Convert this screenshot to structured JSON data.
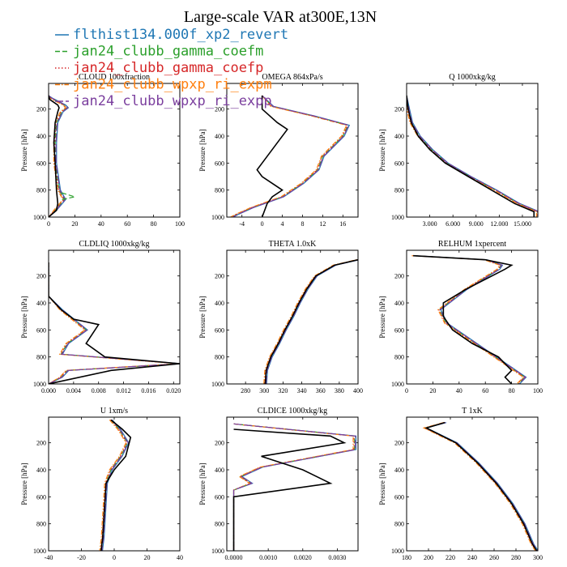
{
  "chart_data": {
    "type": "line",
    "title": "Large-scale VAR at300E,13N",
    "ylabel": "Pressure [hPa]",
    "ylim": [
      1000,
      10
    ],
    "yticks": [
      200,
      400,
      600,
      800,
      1000
    ],
    "legend_position": "top-left",
    "series": [
      {
        "name": "flthist134.000f_xp2_revert",
        "color": "#1f77b4",
        "dash": "solid"
      },
      {
        "name": "jan24_clubb_gamma_coefm",
        "color": "#2ca02c",
        "dash": "dashed"
      },
      {
        "name": "jan24_clubb_gamma_coefp",
        "color": "#d62728",
        "dash": "dotted"
      },
      {
        "name": "jan24_clubb_wpxp_ri_expm",
        "color": "#ff7f0e",
        "dash": "dashdot"
      },
      {
        "name": "jan24_clubb_wpxp_ri_expp",
        "color": "#7b3f9e",
        "dash": "longdash"
      }
    ],
    "panels": [
      {
        "id": "cloud",
        "title": "CLOUD  100xfraction",
        "xlim": [
          0,
          100
        ],
        "xticks": [
          0,
          20,
          40,
          60,
          80,
          100
        ],
        "xtick_labels": [
          "0",
          "20",
          "40",
          "60",
          "80",
          "100"
        ],
        "obs": [
          [
            0,
            100
          ],
          [
            1,
            130
          ],
          [
            4,
            150
          ],
          [
            7,
            170
          ],
          [
            8,
            190
          ],
          [
            7,
            220
          ],
          [
            5,
            300
          ],
          [
            4,
            450
          ],
          [
            5,
            600
          ],
          [
            6,
            800
          ],
          [
            7,
            900
          ],
          [
            6,
            950
          ],
          [
            0,
            1000
          ]
        ],
        "model": [
          [
            0,
            100
          ],
          [
            2,
            120
          ],
          [
            8,
            150
          ],
          [
            12,
            170
          ],
          [
            14,
            190
          ],
          [
            10,
            220
          ],
          [
            6,
            300
          ],
          [
            5,
            450
          ],
          [
            5,
            600
          ],
          [
            8,
            800
          ],
          [
            12,
            870
          ],
          [
            5,
            950
          ],
          [
            0,
            1000
          ]
        ],
        "green_extra": [
          [
            10,
            820
          ],
          [
            20,
            850
          ],
          [
            10,
            870
          ]
        ]
      },
      {
        "id": "omega",
        "title": "OMEGA  864xPa/s",
        "xlim": [
          -7,
          19
        ],
        "xticks": [
          -4,
          0,
          4,
          8,
          12,
          16
        ],
        "xtick_labels": [
          "-4",
          "0",
          "4",
          "8",
          "12",
          "16"
        ],
        "obs": [
          [
            0,
            100
          ],
          [
            0,
            200
          ],
          [
            3,
            300
          ],
          [
            5,
            350
          ],
          [
            3,
            450
          ],
          [
            0,
            600
          ],
          [
            -1,
            650
          ],
          [
            0,
            700
          ],
          [
            4,
            800
          ],
          [
            2,
            850
          ],
          [
            1,
            900
          ],
          [
            0,
            1000
          ]
        ],
        "model": [
          [
            0,
            100
          ],
          [
            2,
            180
          ],
          [
            10,
            250
          ],
          [
            17,
            320
          ],
          [
            16,
            400
          ],
          [
            12,
            550
          ],
          [
            11,
            650
          ],
          [
            8,
            750
          ],
          [
            4,
            850
          ],
          [
            -2,
            930
          ],
          [
            -5,
            980
          ],
          [
            -6,
            1000
          ]
        ]
      },
      {
        "id": "q",
        "title": "Q  1000xkg/kg",
        "xlim": [
          0,
          17
        ],
        "xticks": [
          3,
          6,
          9,
          12,
          15
        ],
        "xtick_labels": [
          "3.000",
          "6.000",
          "9.000",
          "12.000",
          "15.000"
        ],
        "obs": [
          [
            0,
            100
          ],
          [
            0.2,
            200
          ],
          [
            0.6,
            300
          ],
          [
            1.5,
            400
          ],
          [
            3,
            500
          ],
          [
            5,
            600
          ],
          [
            8,
            700
          ],
          [
            11,
            800
          ],
          [
            14,
            900
          ],
          [
            16.5,
            960
          ],
          [
            16.5,
            1000
          ]
        ],
        "model": [
          [
            0,
            100
          ],
          [
            0.2,
            200
          ],
          [
            0.6,
            300
          ],
          [
            1.6,
            400
          ],
          [
            3.2,
            500
          ],
          [
            5.2,
            600
          ],
          [
            8.2,
            700
          ],
          [
            11.5,
            800
          ],
          [
            14.5,
            900
          ],
          [
            17,
            960
          ],
          [
            17,
            1000
          ]
        ]
      },
      {
        "id": "cldliq",
        "title": "CLDLIQ  1000xkg/kg",
        "xlim": [
          0,
          0.021
        ],
        "xticks": [
          0,
          0.004,
          0.008,
          0.012,
          0.016,
          0.02
        ],
        "xtick_labels": [
          "0.000",
          "0.004",
          "0.008",
          "0.012",
          "0.016",
          "0.020"
        ],
        "obs": [
          [
            0,
            100
          ],
          [
            0,
            350
          ],
          [
            0.002,
            450
          ],
          [
            0.004,
            520
          ],
          [
            0.008,
            560
          ],
          [
            0.006,
            700
          ],
          [
            0.009,
            800
          ],
          [
            0.021,
            850
          ],
          [
            0.01,
            900
          ],
          [
            0,
            1000
          ]
        ],
        "model": [
          [
            0,
            100
          ],
          [
            0,
            350
          ],
          [
            0.002,
            450
          ],
          [
            0.006,
            600
          ],
          [
            0.003,
            700
          ],
          [
            0.002,
            780
          ],
          [
            0.021,
            850
          ],
          [
            0.003,
            900
          ],
          [
            0.002,
            950
          ],
          [
            0,
            1000
          ]
        ]
      },
      {
        "id": "theta",
        "title": "THETA  1.0xK",
        "xlim": [
          260,
          400
        ],
        "xticks": [
          280,
          300,
          320,
          340,
          360,
          380,
          400
        ],
        "xtick_labels": [
          "280",
          "300",
          "320",
          "340",
          "360",
          "380",
          "400"
        ],
        "obs": [
          [
            301,
            1000
          ],
          [
            302,
            900
          ],
          [
            307,
            800
          ],
          [
            315,
            700
          ],
          [
            322,
            600
          ],
          [
            330,
            500
          ],
          [
            337,
            400
          ],
          [
            345,
            300
          ],
          [
            355,
            200
          ],
          [
            375,
            120
          ],
          [
            400,
            80
          ]
        ],
        "model": [
          [
            301,
            1000
          ],
          [
            302,
            900
          ],
          [
            307,
            800
          ],
          [
            315,
            700
          ],
          [
            322,
            600
          ],
          [
            330,
            500
          ],
          [
            337,
            400
          ],
          [
            345,
            300
          ],
          [
            355,
            200
          ],
          [
            375,
            120
          ],
          [
            400,
            80
          ]
        ]
      },
      {
        "id": "relhum",
        "title": "RELHUM  1xpercent",
        "xlim": [
          0,
          100
        ],
        "xticks": [
          0,
          20,
          40,
          60,
          80,
          100
        ],
        "xtick_labels": [
          "0",
          "20",
          "40",
          "60",
          "80",
          "100"
        ],
        "obs": [
          [
            5,
            50
          ],
          [
            60,
            80
          ],
          [
            80,
            120
          ],
          [
            75,
            150
          ],
          [
            45,
            300
          ],
          [
            28,
            400
          ],
          [
            28,
            500
          ],
          [
            35,
            600
          ],
          [
            50,
            700
          ],
          [
            70,
            800
          ],
          [
            80,
            900
          ],
          [
            75,
            950
          ],
          [
            80,
            1000
          ]
        ],
        "model": [
          [
            5,
            50
          ],
          [
            60,
            80
          ],
          [
            72,
            120
          ],
          [
            70,
            150
          ],
          [
            45,
            300
          ],
          [
            25,
            450
          ],
          [
            30,
            550
          ],
          [
            45,
            650
          ],
          [
            60,
            750
          ],
          [
            75,
            850
          ],
          [
            90,
            950
          ],
          [
            85,
            1000
          ]
        ]
      },
      {
        "id": "u",
        "title": "U  1xm/s",
        "xlim": [
          -40,
          40
        ],
        "xticks": [
          -40,
          -20,
          0,
          20,
          40
        ],
        "xtick_labels": [
          "-40",
          "-20",
          "0",
          "20",
          "40"
        ],
        "obs": [
          [
            -2,
            30
          ],
          [
            5,
            100
          ],
          [
            10,
            160
          ],
          [
            7,
            300
          ],
          [
            0,
            400
          ],
          [
            -5,
            500
          ],
          [
            -6,
            700
          ],
          [
            -7,
            900
          ],
          [
            -8,
            1000
          ]
        ],
        "model": [
          [
            -2,
            30
          ],
          [
            3,
            100
          ],
          [
            8,
            200
          ],
          [
            4,
            300
          ],
          [
            -2,
            400
          ],
          [
            -5,
            500
          ],
          [
            -6,
            700
          ],
          [
            -7,
            900
          ],
          [
            -8,
            1000
          ]
        ]
      },
      {
        "id": "cldice",
        "title": "CLDICE  1000xkg/kg",
        "xlim": [
          -0.0002,
          0.0036
        ],
        "xticks": [
          0,
          0.001,
          0.002,
          0.003
        ],
        "xtick_labels": [
          "0.0000",
          "0.0010",
          "0.0020",
          "0.0030"
        ],
        "obs": [
          [
            0,
            100
          ],
          [
            0.0028,
            150
          ],
          [
            0.0032,
            200
          ],
          [
            0.0008,
            300
          ],
          [
            0.002,
            400
          ],
          [
            0.0028,
            500
          ],
          [
            0,
            600
          ],
          [
            0,
            1000
          ]
        ],
        "model": [
          [
            0,
            60
          ],
          [
            0.0035,
            150
          ],
          [
            0.0035,
            250
          ],
          [
            0.0008,
            380
          ],
          [
            0.0002,
            450
          ],
          [
            0.0005,
            500
          ],
          [
            0,
            550
          ],
          [
            0,
            1000
          ]
        ]
      },
      {
        "id": "t",
        "title": "T  1xK",
        "xlim": [
          180,
          300
        ],
        "xticks": [
          180,
          200,
          220,
          240,
          260,
          280,
          300
        ],
        "xtick_labels": [
          "180",
          "200",
          "220",
          "240",
          "260",
          "280",
          "300"
        ],
        "obs": [
          [
            215,
            50
          ],
          [
            198,
            90
          ],
          [
            225,
            200
          ],
          [
            245,
            350
          ],
          [
            262,
            500
          ],
          [
            276,
            650
          ],
          [
            287,
            800
          ],
          [
            295,
            950
          ],
          [
            299,
            1000
          ]
        ],
        "model": [
          [
            215,
            50
          ],
          [
            197,
            90
          ],
          [
            225,
            200
          ],
          [
            245,
            350
          ],
          [
            262,
            500
          ],
          [
            276,
            650
          ],
          [
            287,
            800
          ],
          [
            295,
            950
          ],
          [
            299,
            1000
          ]
        ]
      }
    ]
  }
}
